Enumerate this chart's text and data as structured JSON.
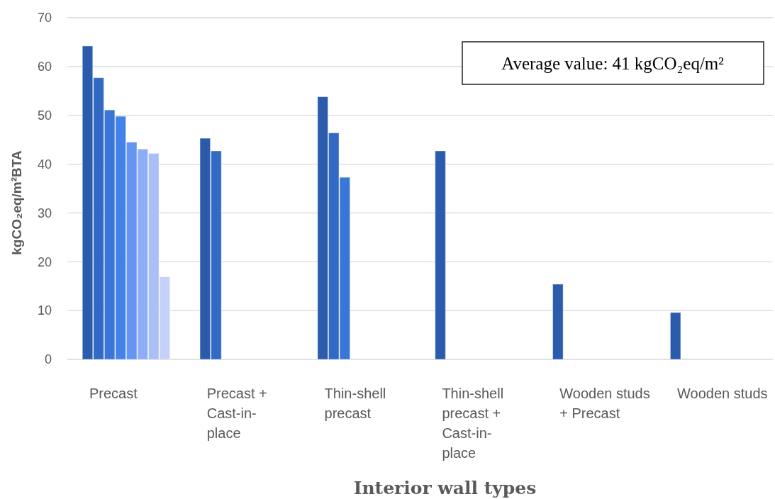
{
  "chart_data": {
    "type": "bar",
    "xlabel": "Interior wall types",
    "ylabel": "kgCO₂eq/m²BTA",
    "categories": [
      "Precast",
      "Precast + Cast-in-place",
      "Thin-shell precast",
      "Thin-shell precast + Cast-in-place",
      "Wooden studs + Precast",
      "Wooden studs"
    ],
    "series": [
      {
        "color": "#2b5cab",
        "values": [
          64.2,
          45.3,
          53.8,
          42.7,
          15.4,
          9.6
        ]
      },
      {
        "color": "#3169c4",
        "values": [
          57.7,
          42.7,
          46.4,
          null,
          null,
          null
        ]
      },
      {
        "color": "#3a75d8",
        "values": [
          51.1,
          null,
          37.3,
          null,
          null,
          null
        ]
      },
      {
        "color": "#4382e9",
        "values": [
          49.8,
          null,
          null,
          null,
          null,
          null
        ]
      },
      {
        "color": "#6495f2",
        "values": [
          44.5,
          null,
          null,
          null,
          null,
          null
        ]
      },
      {
        "color": "#8fadf5",
        "values": [
          43.1,
          null,
          null,
          null,
          null,
          null
        ]
      },
      {
        "color": "#aabff6",
        "values": [
          42.2,
          null,
          null,
          null,
          null,
          null
        ]
      },
      {
        "color": "#c5d1f8",
        "values": [
          16.9,
          null,
          null,
          null,
          null,
          null
        ]
      }
    ],
    "ylim": [
      0,
      70
    ],
    "yticks": [
      0,
      10,
      20,
      30,
      40,
      50,
      60,
      70
    ],
    "grid": "y",
    "annotations": [
      "Average value: 41 kgCO₂eq/m²"
    ]
  }
}
